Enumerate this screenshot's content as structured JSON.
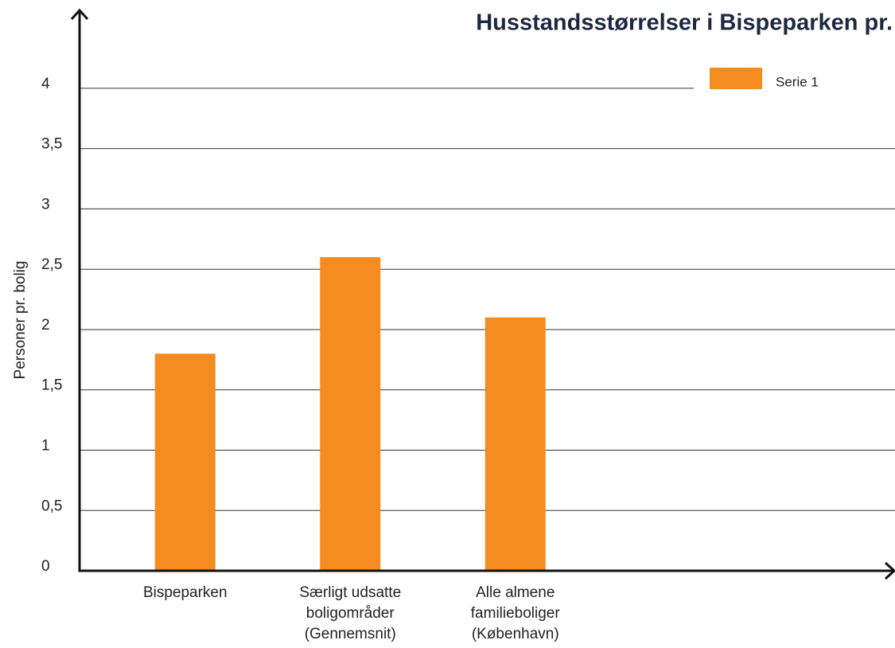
{
  "chart_data": {
    "type": "bar",
    "title": "Husstandsstørrelser i Bispeparken pr.",
    "y_label": "Personer pr. bolig",
    "categories": [
      "Bispeparken",
      "Særligt udsatte boligområder (Gennemsnit)",
      "Alle almene familieboliger (København)"
    ],
    "series": [
      {
        "name": "Serie 1",
        "color": "#f58c20",
        "values": [
          1.8,
          2.6,
          2.1
        ]
      }
    ],
    "ylim": [
      0,
      4.6
    ],
    "yticks": [
      0,
      {
        "value": 0.5,
        "label": "0,5"
      },
      1,
      {
        "value": 1.5,
        "label": "1,5"
      },
      2,
      {
        "value": 2.5,
        "label": "2,5"
      },
      3,
      {
        "value": 3.5,
        "label": "3,5"
      },
      4
    ],
    "grid": true,
    "legend": "top-right"
  }
}
